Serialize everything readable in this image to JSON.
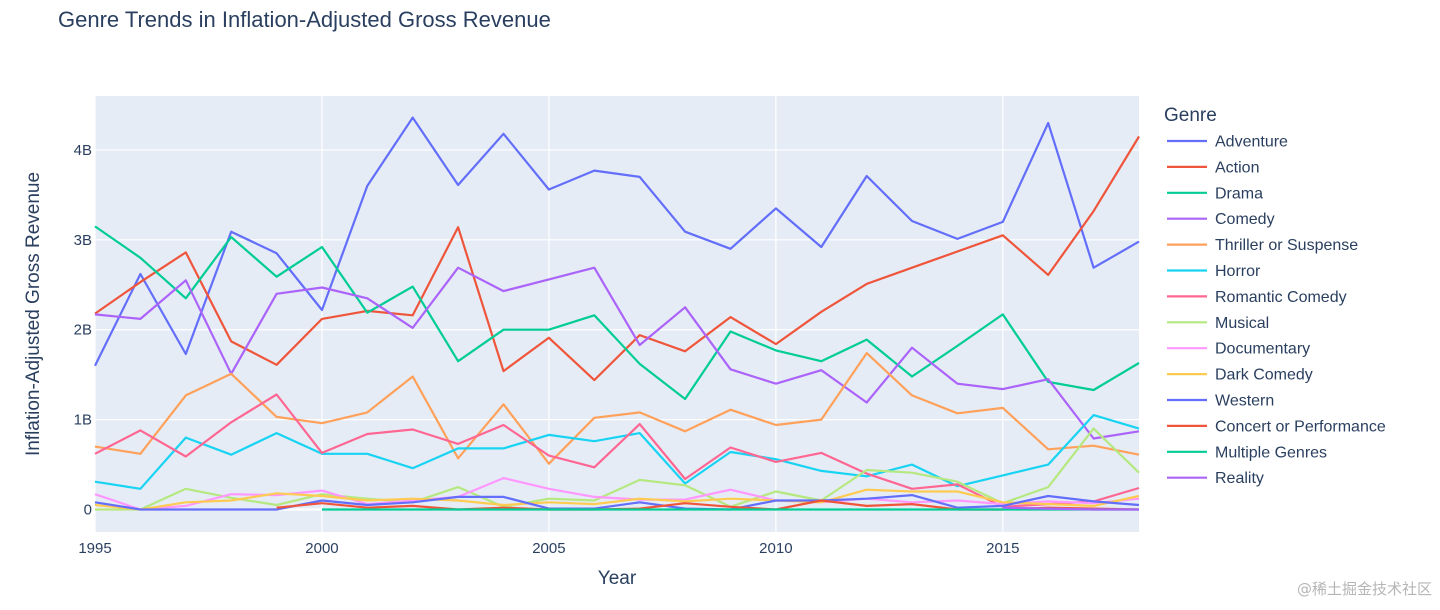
{
  "chart_data": {
    "type": "line",
    "title": "Genre Trends in Inflation-Adjusted Gross Revenue",
    "xlabel": "Year",
    "ylabel": "Inflation-Adjusted Gross Revenue",
    "xlim": [
      1995,
      2018
    ],
    "ylim": [
      -0.25,
      4.6
    ],
    "xticks": [
      1995,
      2000,
      2005,
      2010,
      2015
    ],
    "yticks": [
      {
        "value": 0,
        "label": "0"
      },
      {
        "value": 1,
        "label": "1B"
      },
      {
        "value": 2,
        "label": "2B"
      },
      {
        "value": 3,
        "label": "3B"
      },
      {
        "value": 4,
        "label": "4B"
      }
    ],
    "legend_title": "Genre",
    "legend_position": "right",
    "grid": true,
    "x": [
      1995,
      1996,
      1997,
      1998,
      1999,
      2000,
      2001,
      2002,
      2003,
      2004,
      2005,
      2006,
      2007,
      2008,
      2009,
      2010,
      2011,
      2012,
      2013,
      2014,
      2015,
      2016,
      2017,
      2018
    ],
    "series": [
      {
        "name": "Adventure",
        "color": "#636efa",
        "values": [
          1.6,
          2.62,
          1.73,
          3.09,
          2.85,
          2.22,
          3.6,
          4.36,
          3.61,
          4.18,
          3.56,
          3.77,
          3.7,
          3.09,
          2.9,
          3.35,
          2.92,
          3.71,
          3.21,
          3.01,
          3.2,
          4.3,
          2.69,
          2.98
        ]
      },
      {
        "name": "Action",
        "color": "#ef553b",
        "values": [
          2.18,
          2.53,
          2.86,
          1.87,
          1.61,
          2.12,
          2.21,
          2.16,
          3.14,
          1.54,
          1.91,
          1.44,
          1.94,
          1.76,
          2.14,
          1.84,
          2.2,
          2.51,
          2.69,
          2.87,
          3.05,
          2.61,
          3.32,
          4.15
        ]
      },
      {
        "name": "Drama",
        "color": "#00cc96",
        "values": [
          3.15,
          2.8,
          2.35,
          3.03,
          2.59,
          2.92,
          2.19,
          2.48,
          1.65,
          2.0,
          2.0,
          2.16,
          1.62,
          1.23,
          1.98,
          1.77,
          1.65,
          1.89,
          1.48,
          1.82,
          2.17,
          1.42,
          1.33,
          1.63
        ]
      },
      {
        "name": "Comedy",
        "color": "#ab63fa",
        "values": [
          2.17,
          2.12,
          2.55,
          1.51,
          2.4,
          2.47,
          2.35,
          2.02,
          2.69,
          2.43,
          2.56,
          2.69,
          1.83,
          2.25,
          1.56,
          1.4,
          1.55,
          1.19,
          1.8,
          1.4,
          1.34,
          1.45,
          0.79,
          0.87
        ]
      },
      {
        "name": "Thriller or Suspense",
        "color": "#ffa15a",
        "values": [
          0.7,
          0.62,
          1.27,
          1.51,
          1.03,
          0.96,
          1.08,
          1.48,
          0.57,
          1.17,
          0.51,
          1.02,
          1.08,
          0.87,
          1.11,
          0.94,
          1.0,
          1.74,
          1.27,
          1.07,
          1.13,
          0.67,
          0.71,
          0.61
        ]
      },
      {
        "name": "Horror",
        "color": "#19d3f3",
        "values": [
          0.31,
          0.23,
          0.8,
          0.61,
          0.85,
          0.62,
          0.62,
          0.46,
          0.68,
          0.68,
          0.83,
          0.76,
          0.85,
          0.29,
          0.64,
          0.56,
          0.43,
          0.37,
          0.5,
          0.26,
          0.38,
          0.5,
          1.05,
          0.9
        ]
      },
      {
        "name": "Romantic Comedy",
        "color": "#ff6692",
        "values": [
          0.62,
          0.88,
          0.59,
          0.97,
          1.28,
          0.63,
          0.84,
          0.89,
          0.73,
          0.94,
          0.6,
          0.47,
          0.95,
          0.34,
          0.69,
          0.53,
          0.63,
          0.4,
          0.23,
          0.28,
          0.03,
          0.06,
          0.09,
          0.24
        ]
      },
      {
        "name": "Musical",
        "color": "#b6e880",
        "values": [
          0.0,
          0.0,
          0.23,
          0.13,
          0.05,
          0.17,
          0.12,
          0.08,
          0.25,
          0.03,
          0.12,
          0.1,
          0.33,
          0.27,
          0.03,
          0.2,
          0.1,
          0.44,
          0.41,
          0.31,
          0.07,
          0.25,
          0.9,
          0.41
        ]
      },
      {
        "name": "Documentary",
        "color": "#ff97ff",
        "values": [
          0.17,
          0.0,
          0.04,
          0.17,
          0.16,
          0.21,
          0.06,
          0.1,
          0.14,
          0.35,
          0.23,
          0.14,
          0.11,
          0.11,
          0.22,
          0.1,
          0.08,
          0.12,
          0.08,
          0.1,
          0.06,
          0.09,
          0.07,
          0.12
        ]
      },
      {
        "name": "Dark Comedy",
        "color": "#fecb52",
        "values": [
          0.05,
          0.0,
          0.08,
          0.1,
          0.18,
          0.15,
          0.1,
          0.12,
          0.1,
          0.05,
          0.08,
          0.06,
          0.12,
          0.09,
          0.12,
          0.1,
          0.08,
          0.22,
          0.2,
          0.2,
          0.08,
          0.06,
          0.04,
          0.15
        ]
      },
      {
        "name": "Western",
        "color": "#636efa",
        "values": [
          0.08,
          0.0,
          0.0,
          0.0,
          0.0,
          0.1,
          0.05,
          0.08,
          0.14,
          0.14,
          0.01,
          0.01,
          0.08,
          0.01,
          0.0,
          0.1,
          0.1,
          0.12,
          0.16,
          0.02,
          0.04,
          0.15,
          0.09,
          0.05
        ]
      },
      {
        "name": "Concert or Performance",
        "color": "#ef553b",
        "values": [
          null,
          null,
          null,
          null,
          0.02,
          0.07,
          0.02,
          0.04,
          0.0,
          0.02,
          0.0,
          0.0,
          0.01,
          0.07,
          0.03,
          0.0,
          0.1,
          0.04,
          0.06,
          0.0,
          0.0,
          0.02,
          0.01,
          0.0
        ]
      },
      {
        "name": "Multiple Genres",
        "color": "#00cc96",
        "values": [
          null,
          null,
          null,
          null,
          null,
          0.0,
          0.0,
          0.0,
          0.0,
          0.0,
          0.0,
          0.0,
          0.0,
          0.0,
          0.0,
          0.0,
          0.0,
          0.0,
          0.0,
          0.0,
          0.0,
          0.0,
          0.0,
          0.0
        ]
      },
      {
        "name": "Reality",
        "color": "#ab63fa",
        "values": [
          null,
          null,
          null,
          null,
          null,
          null,
          null,
          null,
          null,
          null,
          null,
          null,
          null,
          null,
          null,
          null,
          null,
          null,
          null,
          null,
          0.02,
          0.01,
          0.0,
          0.0
        ]
      }
    ]
  },
  "watermark": "@稀土掘金技术社区"
}
